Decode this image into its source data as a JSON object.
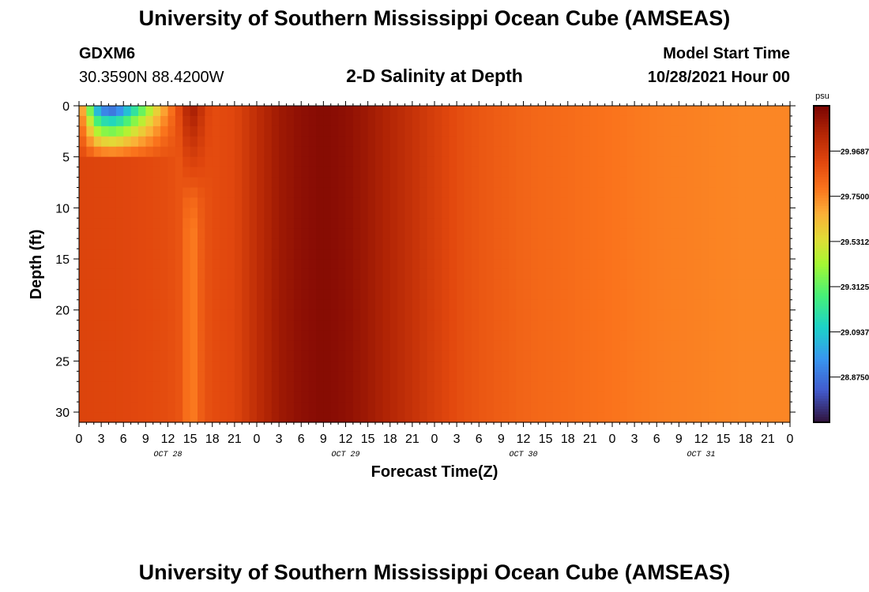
{
  "header": {
    "title": "University of Southern Mississippi Ocean Cube (AMSEAS)",
    "station_id": "GDXM6",
    "coordinates": "30.3590N  88.4200W",
    "subtitle": "2-D Salinity at Depth",
    "model_start_label": "Model Start Time",
    "model_start_value": "10/28/2021 Hour 00"
  },
  "footer": {
    "repeated_title": "University of Southern Mississippi Ocean Cube (AMSEAS)"
  },
  "chart_data": {
    "type": "heatmap",
    "title": "2-D Salinity at Depth",
    "xlabel": "Forecast Time(Z)",
    "ylabel": "Depth (ft)",
    "x_range_hours": [
      0,
      96
    ],
    "y_range_ft": [
      0,
      31
    ],
    "y_inverted": true,
    "x_tick_labels": [
      "0",
      "3",
      "6",
      "9",
      "12",
      "15",
      "18",
      "21",
      "0",
      "3",
      "6",
      "9",
      "12",
      "15",
      "18",
      "21",
      "0",
      "3",
      "6",
      "9",
      "12",
      "15",
      "18",
      "21",
      "0",
      "3",
      "6",
      "9",
      "12",
      "15",
      "18",
      "21",
      "0"
    ],
    "day_labels": [
      "OCT 28",
      "OCT 29",
      "OCT 30",
      "OCT 31"
    ],
    "y_ticks": [
      0,
      5,
      10,
      15,
      20,
      25,
      30
    ],
    "colorbar": {
      "unit": "psu",
      "range": [
        28.656,
        30.188
      ],
      "tick_labels": [
        "29.9687",
        "29.7500",
        "29.5312",
        "29.3125",
        "29.0937",
        "28.8750"
      ],
      "tick_values": [
        29.96875,
        29.75,
        29.53125,
        29.3125,
        29.09375,
        28.875
      ]
    },
    "surface_salinity_by_hour": [
      [
        0,
        29.78
      ],
      [
        1,
        29.5
      ],
      [
        2,
        29.0
      ],
      [
        3,
        28.8
      ],
      [
        4,
        28.7
      ],
      [
        5,
        28.72
      ],
      [
        6,
        28.85
      ],
      [
        7,
        29.0
      ],
      [
        8,
        29.15
      ],
      [
        9,
        29.3
      ],
      [
        10,
        29.45
      ],
      [
        11,
        29.6
      ],
      [
        12,
        29.72
      ],
      [
        13,
        29.85
      ],
      [
        14,
        29.97
      ],
      [
        15,
        30.1
      ],
      [
        16,
        30.06
      ],
      [
        17,
        29.95
      ],
      [
        18,
        29.9
      ],
      [
        21,
        29.92
      ],
      [
        24,
        30.02
      ],
      [
        27,
        30.1
      ],
      [
        30,
        30.14
      ],
      [
        33,
        30.16
      ],
      [
        36,
        30.14
      ],
      [
        39,
        30.1
      ],
      [
        42,
        30.05
      ],
      [
        45,
        30.0
      ],
      [
        48,
        29.95
      ],
      [
        51,
        29.9
      ],
      [
        54,
        29.87
      ],
      [
        57,
        29.85
      ],
      [
        60,
        29.83
      ],
      [
        63,
        29.82
      ],
      [
        66,
        29.81
      ],
      [
        69,
        29.8
      ],
      [
        72,
        29.79
      ],
      [
        75,
        29.78
      ],
      [
        78,
        29.77
      ],
      [
        84,
        29.76
      ],
      [
        90,
        29.75
      ],
      [
        96,
        29.75
      ]
    ],
    "bottom_salinity_by_hour": [
      [
        0,
        29.93
      ],
      [
        6,
        29.92
      ],
      [
        12,
        29.9
      ],
      [
        14,
        29.87
      ],
      [
        15,
        29.83
      ],
      [
        16,
        29.86
      ],
      [
        18,
        29.9
      ],
      [
        21,
        29.92
      ],
      [
        24,
        30.02
      ],
      [
        27,
        30.1
      ],
      [
        30,
        30.14
      ],
      [
        33,
        30.16
      ],
      [
        36,
        30.14
      ],
      [
        39,
        30.1
      ],
      [
        42,
        30.05
      ],
      [
        45,
        30.0
      ],
      [
        48,
        29.95
      ],
      [
        51,
        29.9
      ],
      [
        54,
        29.87
      ],
      [
        57,
        29.85
      ],
      [
        60,
        29.83
      ],
      [
        63,
        29.82
      ],
      [
        66,
        29.81
      ],
      [
        69,
        29.8
      ],
      [
        72,
        29.79
      ],
      [
        75,
        29.78
      ],
      [
        78,
        29.77
      ],
      [
        84,
        29.76
      ],
      [
        90,
        29.75
      ],
      [
        96,
        29.75
      ]
    ]
  }
}
